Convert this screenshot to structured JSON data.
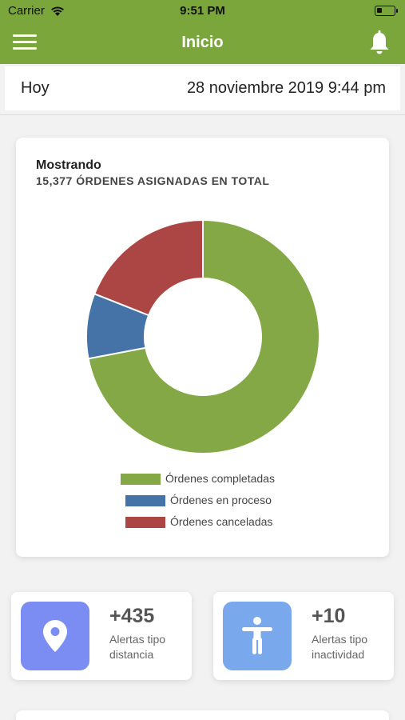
{
  "status_bar": {
    "carrier": "Carrier",
    "time": "9:51 PM"
  },
  "header": {
    "title": "Inicio",
    "menu_icon": "hamburger-menu-icon",
    "notification_icon": "bell-icon"
  },
  "date_row": {
    "label": "Hoy",
    "datetime": "28 noviembre 2019 9:44 pm"
  },
  "orders_card": {
    "title": "Mostrando",
    "subtitle": "15,377 ÓRDENES ASIGNADAS EN TOTAL"
  },
  "chart_data": {
    "type": "pie",
    "hole": true,
    "total": 15377,
    "categories": [
      "Órdenes completadas",
      "Órdenes en proceso",
      "Órdenes canceladas"
    ],
    "values": [
      72,
      9,
      19
    ],
    "colors": [
      "#84a846",
      "#4673a7",
      "#ab4645"
    ],
    "legend_position": "bottom"
  },
  "alerts": [
    {
      "count": "+435",
      "label": "Alertas tipo distancia",
      "icon": "location-pin-icon",
      "color": "#7b8cf3"
    },
    {
      "count": "+10",
      "label": "Alertas tipo inactividad",
      "icon": "person-icon",
      "color": "#7aa8ec"
    }
  ],
  "colors": {
    "header": "#7aa63c",
    "background": "#f2f2f2"
  }
}
